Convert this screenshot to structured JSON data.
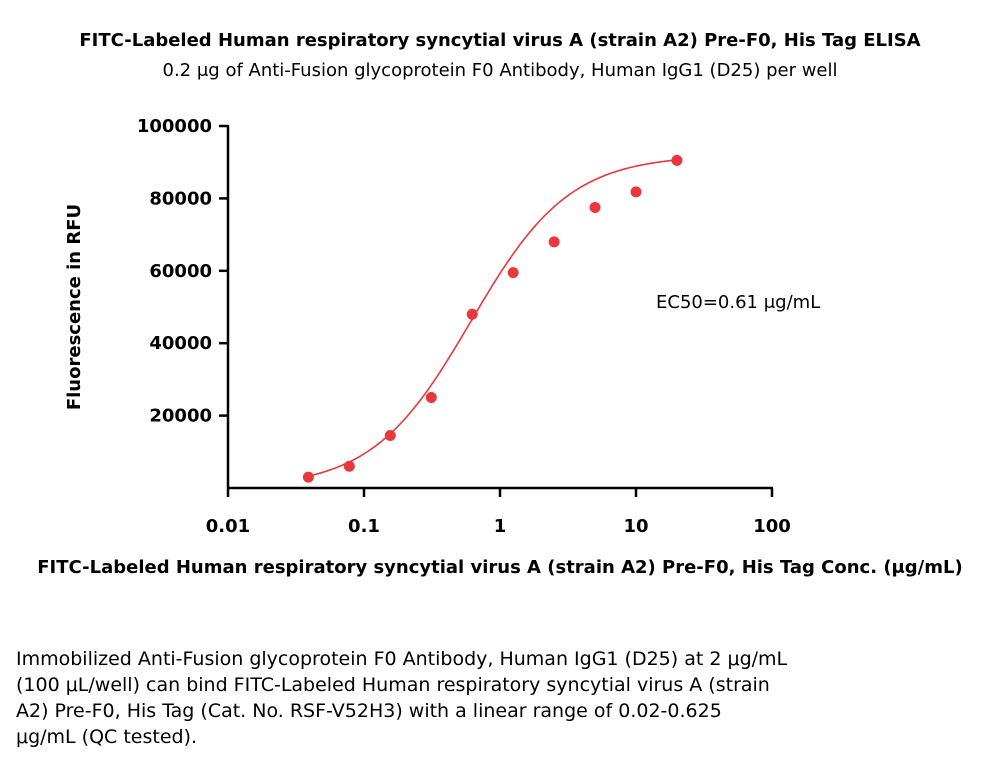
{
  "chart_data": {
    "type": "scatter",
    "title": "FITC-Labeled Human respiratory syncytial virus A (strain A2) Pre-F0, His Tag ELISA",
    "subtitle": "0.2 μg of Anti-Fusion glycoprotein F0 Antibody, Human IgG1 (D25) per well",
    "xlabel": "FITC-Labeled Human respiratory syncytial virus A (strain A2) Pre-F0, His Tag Conc. (μg/mL)",
    "ylabel": "Fluorescence in RFU",
    "x_scale": "log",
    "xlim": [
      0.01,
      100
    ],
    "ylim": [
      0,
      100000
    ],
    "x_ticks": [
      0.01,
      0.1,
      1,
      10,
      100
    ],
    "x_tick_labels": [
      "0.01",
      "0.1",
      "1",
      "10",
      "100"
    ],
    "y_ticks": [
      20000,
      40000,
      60000,
      80000,
      100000
    ],
    "y_tick_labels": [
      "20000",
      "40000",
      "60000",
      "80000",
      "100000"
    ],
    "color": "#e8383d",
    "series": [
      {
        "x": [
          0.039,
          0.078,
          0.156,
          0.3125,
          0.625,
          1.25,
          2.5,
          5,
          10,
          20
        ],
        "y": [
          3000,
          6000,
          14500,
          25000,
          48000,
          59500,
          68000,
          77500,
          81800,
          90500
        ]
      }
    ],
    "fit": {
      "model": "4PL",
      "bottom": 0,
      "top": 92000,
      "ec50": 0.61,
      "hill": 1.2,
      "x_range": [
        0.039,
        20
      ]
    },
    "annotation": "EC50=0.61  μg/mL"
  },
  "caption": {
    "lines": [
      "Immobilized Anti-Fusion glycoprotein F0 Antibody, Human IgG1 (D25) at 2 μg/mL",
      "(100 μL/well) can bind FITC-Labeled Human respiratory syncytial virus A (strain",
      "A2) Pre-F0, His Tag (Cat. No. RSF-V52H3) with a linear range of 0.02-0.625",
      "μg/mL (QC tested)."
    ]
  }
}
